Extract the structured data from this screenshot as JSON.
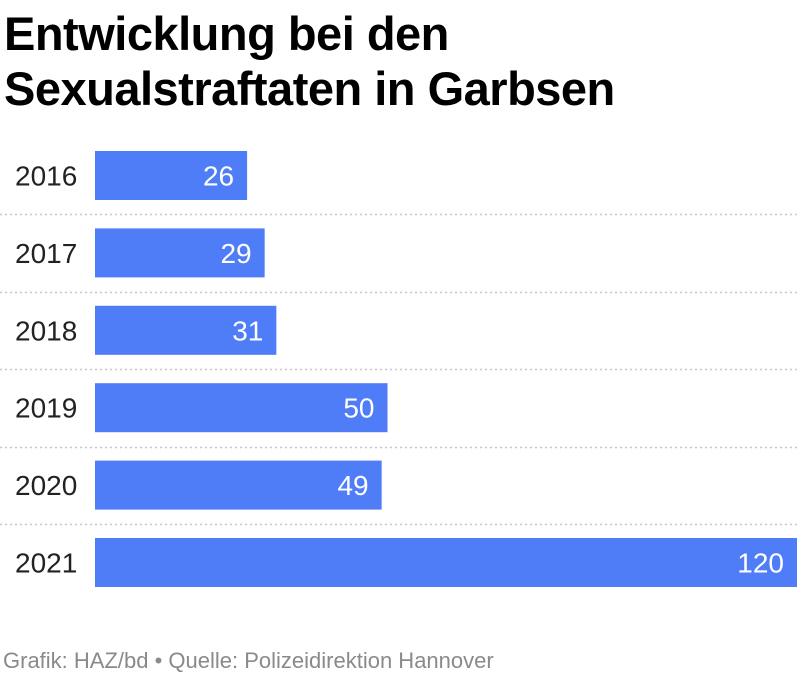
{
  "chart_data": {
    "type": "bar",
    "orientation": "horizontal",
    "title": "Entwicklung bei den Sexualstraftaten in Garbsen",
    "categories": [
      "2016",
      "2017",
      "2018",
      "2019",
      "2020",
      "2021"
    ],
    "values": [
      26,
      29,
      31,
      50,
      49,
      120
    ],
    "xlim": [
      0,
      120
    ],
    "grid": false,
    "legend": "none",
    "data_labels": true
  },
  "colors": {
    "bar": "#4f7cf7",
    "separator": "#c8c8c8",
    "footer_text": "#8a8a8a"
  },
  "footer": {
    "text": "Grafik: HAZ/bd • Quelle: Polizeidirektion Hannover"
  }
}
